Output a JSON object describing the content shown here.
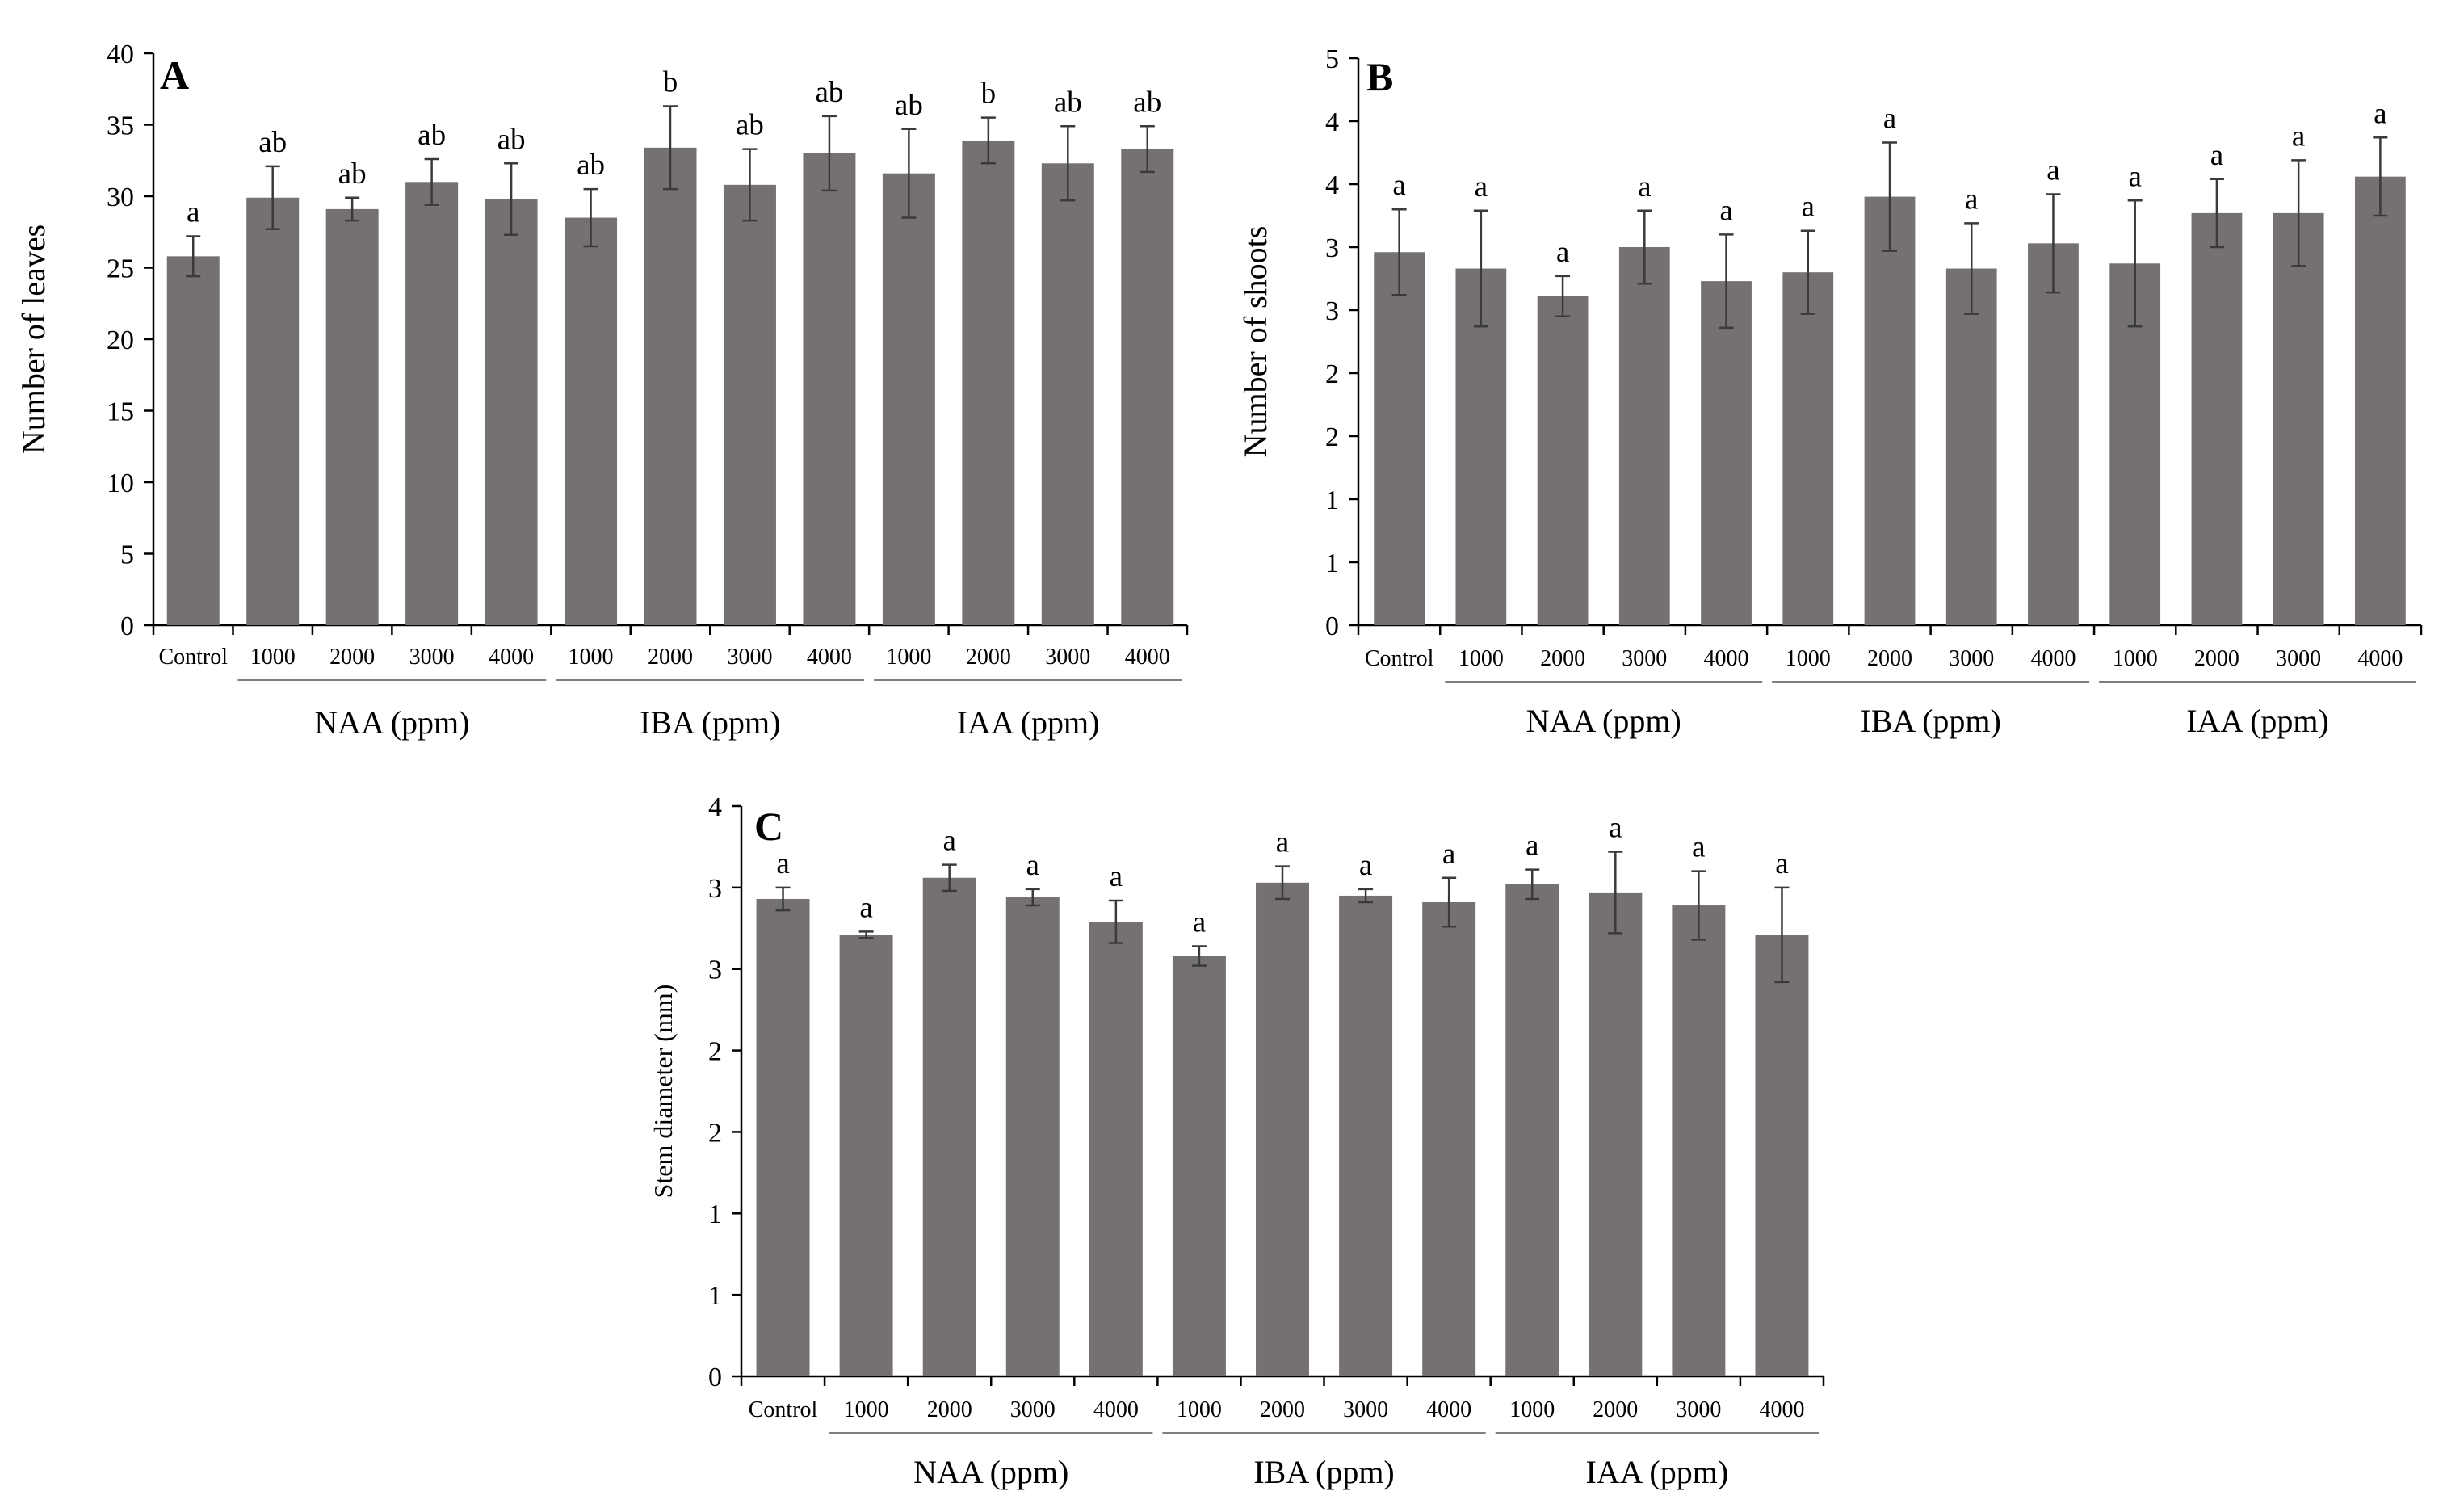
{
  "figure": {
    "bar_color": "#767171",
    "axis_color": "#000000"
  },
  "chart_data": [
    {
      "type": "bar",
      "panel_label": "A",
      "title": "",
      "xlabel": "",
      "ylabel": "Number of leaves",
      "ylim": [
        0,
        40
      ],
      "yticks": [
        0,
        5,
        10,
        15,
        20,
        25,
        30,
        35,
        40
      ],
      "ytick_labels": [
        "0",
        "5",
        "10",
        "15",
        "20",
        "25",
        "30",
        "35",
        "40"
      ],
      "categories": [
        "Control",
        "1000",
        "2000",
        "3000",
        "4000",
        "1000",
        "2000",
        "3000",
        "4000",
        "1000",
        "2000",
        "3000",
        "4000"
      ],
      "values": [
        25.8,
        29.9,
        29.1,
        31.0,
        29.8,
        28.5,
        33.4,
        30.8,
        33.0,
        31.6,
        33.9,
        32.3,
        33.3
      ],
      "errors": [
        1.4,
        2.2,
        0.8,
        1.6,
        2.5,
        2.0,
        2.9,
        2.5,
        2.6,
        3.1,
        1.6,
        2.6,
        1.6
      ],
      "letters": [
        "a",
        "ab",
        "ab",
        "ab",
        "ab",
        "ab",
        "b",
        "ab",
        "ab",
        "ab",
        "b",
        "ab",
        "ab"
      ],
      "groups": [
        {
          "label": "NAA (ppm)",
          "members": [
            1,
            2,
            3,
            4
          ]
        },
        {
          "label": "IBA (ppm)",
          "members": [
            5,
            6,
            7,
            8
          ]
        },
        {
          "label": "IAA (ppm)",
          "members": [
            9,
            10,
            11,
            12
          ]
        }
      ]
    },
    {
      "type": "bar",
      "panel_label": "B",
      "title": "",
      "xlabel": "",
      "ylabel": "Number of shoots",
      "ylim": [
        0,
        4.5
      ],
      "yticks": [
        0,
        0.5,
        1,
        1.5,
        2,
        2.5,
        3,
        3.5,
        4,
        4.5
      ],
      "ytick_labels": [
        "0",
        "1",
        "1",
        "2",
        "2",
        "3",
        "3",
        "4",
        "4",
        "5"
      ],
      "categories": [
        "Control",
        "1000",
        "2000",
        "3000",
        "4000",
        "1000",
        "2000",
        "3000",
        "4000",
        "1000",
        "2000",
        "3000",
        "4000"
      ],
      "values": [
        2.96,
        2.83,
        2.61,
        3.0,
        2.73,
        2.8,
        3.4,
        2.83,
        3.03,
        2.87,
        3.27,
        3.27,
        3.56
      ],
      "errors": [
        0.34,
        0.46,
        0.16,
        0.29,
        0.37,
        0.33,
        0.43,
        0.36,
        0.39,
        0.5,
        0.27,
        0.42,
        0.31
      ],
      "letters": [
        "a",
        "a",
        "a",
        "a",
        "a",
        "a",
        "a",
        "a",
        "a",
        "a",
        "a",
        "a",
        "a"
      ],
      "groups": [
        {
          "label": "NAA (ppm)",
          "members": [
            1,
            2,
            3,
            4
          ]
        },
        {
          "label": "IBA (ppm)",
          "members": [
            5,
            6,
            7,
            8
          ]
        },
        {
          "label": "IAA (ppm)",
          "members": [
            9,
            10,
            11,
            12
          ]
        }
      ]
    },
    {
      "type": "bar",
      "panel_label": "C",
      "title": "",
      "xlabel": "",
      "ylabel": "Stem diameter (mm)",
      "ylim": [
        0,
        3.5
      ],
      "yticks": [
        0,
        0.5,
        1,
        1.5,
        2,
        2.5,
        3,
        3.5
      ],
      "ytick_labels": [
        "0",
        "1",
        "1",
        "2",
        "2",
        "3",
        "3",
        "4"
      ],
      "categories": [
        "Control",
        "1000",
        "2000",
        "3000",
        "4000",
        "1000",
        "2000",
        "3000",
        "4000",
        "1000",
        "2000",
        "3000",
        "4000"
      ],
      "values": [
        2.93,
        2.71,
        3.06,
        2.94,
        2.79,
        2.58,
        3.03,
        2.95,
        2.91,
        3.02,
        2.97,
        2.89,
        2.71
      ],
      "errors": [
        0.07,
        0.02,
        0.08,
        0.05,
        0.13,
        0.06,
        0.1,
        0.04,
        0.15,
        0.09,
        0.25,
        0.21,
        0.29
      ],
      "letters": [
        "a",
        "a",
        "a",
        "a",
        "a",
        "a",
        "a",
        "a",
        "a",
        "a",
        "a",
        "a",
        "a"
      ],
      "groups": [
        {
          "label": "NAA (ppm)",
          "members": [
            1,
            2,
            3,
            4
          ]
        },
        {
          "label": "IBA (ppm)",
          "members": [
            5,
            6,
            7,
            8
          ]
        },
        {
          "label": "IAA (ppm)",
          "members": [
            9,
            10,
            11,
            12
          ]
        }
      ]
    }
  ]
}
